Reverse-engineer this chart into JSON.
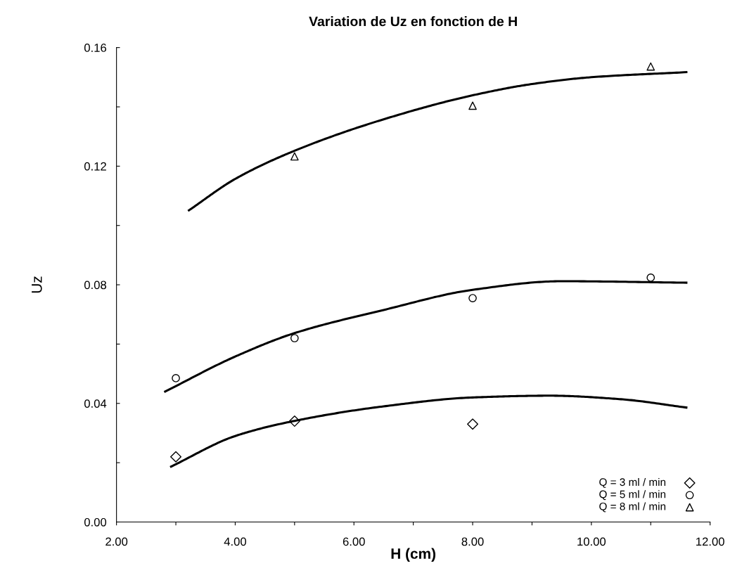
{
  "chart_data": {
    "type": "scatter",
    "title": "Variation de Uz en fonction de H",
    "xlabel": "H (cm)",
    "ylabel": "Uz",
    "xlim": [
      2,
      12
    ],
    "xticks": [
      {
        "value": 2,
        "label": "2.00"
      },
      {
        "value": 3,
        "label": null
      },
      {
        "value": 4,
        "label": "4.00"
      },
      {
        "value": 5,
        "label": null
      },
      {
        "value": 6,
        "label": "6.00"
      },
      {
        "value": 7,
        "label": null
      },
      {
        "value": 8,
        "label": "8.00"
      },
      {
        "value": 9,
        "label": null
      },
      {
        "value": 10,
        "label": "10.00"
      },
      {
        "value": 11,
        "label": null
      },
      {
        "value": 12,
        "label": "12.00"
      }
    ],
    "ylim": [
      0,
      0.16
    ],
    "yticks": [
      {
        "value": 0,
        "label": "0.00"
      },
      {
        "value": 0.02,
        "label": null
      },
      {
        "value": 0.04,
        "label": "0.04"
      },
      {
        "value": 0.06,
        "label": null
      },
      {
        "value": 0.08,
        "label": "0.08"
      },
      {
        "value": 0.1,
        "label": null
      },
      {
        "value": 0.12,
        "label": "0.12"
      },
      {
        "value": 0.14,
        "label": null
      },
      {
        "value": 0.16,
        "label": "0.16"
      }
    ],
    "grid": false,
    "legend": "bottom right",
    "series": [
      {
        "name": "Q = 3 ml / min",
        "marker": "diamond",
        "color": "#000000",
        "x": [
          3,
          5,
          8
        ],
        "values": [
          0.022,
          0.034,
          0.033
        ]
      },
      {
        "name": "Q = 5 ml / min",
        "marker": "circle",
        "color": "#000000",
        "x": [
          3,
          5,
          8,
          11
        ],
        "values": [
          0.0485,
          0.062,
          0.0755,
          0.0824
        ]
      },
      {
        "name": "Q = 8 ml / min",
        "marker": "triangle",
        "color": "#000000",
        "x": [
          5,
          8,
          11
        ],
        "values": [
          0.1233,
          0.1404,
          0.1536
        ]
      },
      {
        "type": "line",
        "marker": "none",
        "color": "#000000",
        "x": [
          2.92,
          4,
          5,
          6.5,
          8,
          9.3,
          10.5,
          11.6
        ],
        "values": [
          0.0187,
          0.029,
          0.0341,
          0.039,
          0.042,
          0.0426,
          0.0414,
          0.0386
        ]
      },
      {
        "type": "line",
        "marker": "none",
        "color": "#000000",
        "x": [
          2.82,
          4,
          5,
          6.5,
          8,
          9.5,
          11.6
        ],
        "values": [
          0.044,
          0.0558,
          0.0637,
          0.0715,
          0.0783,
          0.0812,
          0.0807
        ]
      },
      {
        "type": "line",
        "marker": "none",
        "color": "#000000",
        "x": [
          3.22,
          4,
          5,
          6.5,
          8,
          9,
          10,
          11.6
        ],
        "values": [
          0.1051,
          0.1157,
          0.1252,
          0.1358,
          0.1439,
          0.1477,
          0.15,
          0.1517
        ]
      }
    ]
  }
}
